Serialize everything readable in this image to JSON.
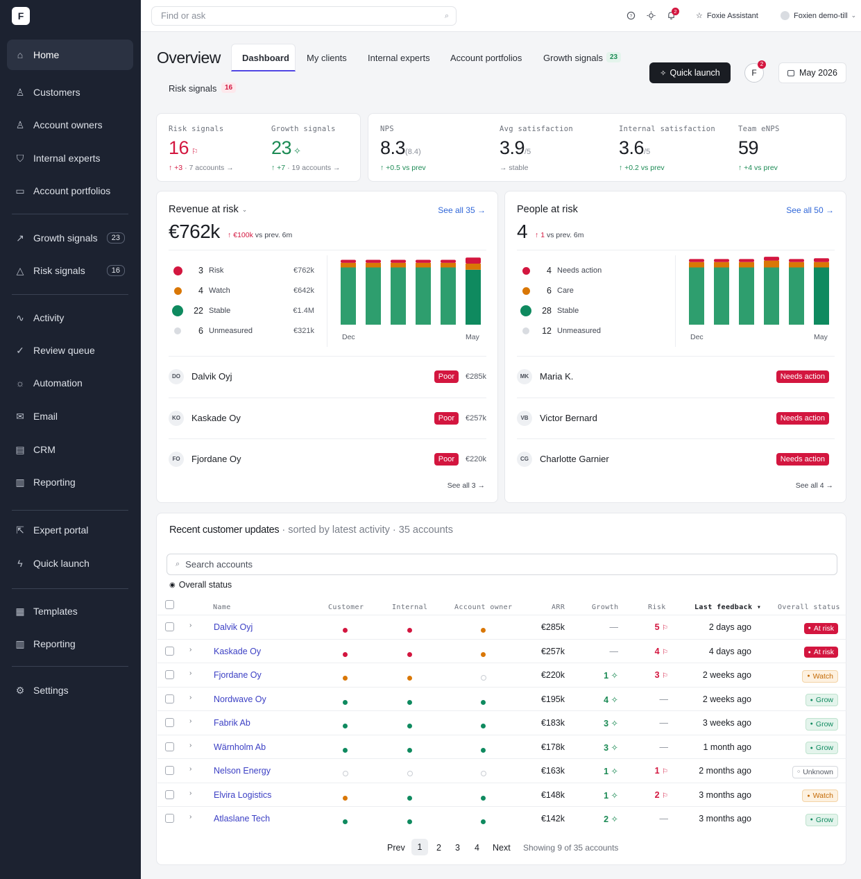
{
  "app": {
    "logo": "F"
  },
  "sidebar": {
    "items": [
      {
        "label": "Home",
        "icon": "home-icon"
      },
      {
        "label": "Customers",
        "icon": "user-icon"
      },
      {
        "label": "Account owners",
        "icon": "user-icon"
      },
      {
        "label": "Internal experts",
        "icon": "badge-icon"
      },
      {
        "label": "Account portfolios",
        "icon": "briefcase-icon"
      },
      {
        "label": "Growth signals",
        "icon": "trend-icon",
        "badge": "23"
      },
      {
        "label": "Risk signals",
        "icon": "warning-icon",
        "badge": "16"
      },
      {
        "label": "Activity",
        "icon": "activity-icon"
      },
      {
        "label": "Review queue",
        "icon": "check-circle-icon"
      },
      {
        "label": "Automation",
        "icon": "sun-icon"
      },
      {
        "label": "Email",
        "icon": "mail-icon"
      },
      {
        "label": "CRM",
        "icon": "table-icon"
      },
      {
        "label": "Reporting",
        "icon": "bar-chart-icon"
      },
      {
        "label": "Expert portal",
        "icon": "external-link-icon"
      },
      {
        "label": "Quick launch",
        "icon": "lightning-icon"
      },
      {
        "label": "Templates",
        "icon": "template-icon"
      },
      {
        "label": "Reporting",
        "icon": "bar-chart-icon"
      },
      {
        "label": "Settings",
        "icon": "gear-icon"
      }
    ]
  },
  "topbar": {
    "search_placeholder": "Find or ask",
    "notif_count": "2",
    "assistant": "Foxie Assistant",
    "account": "Foxien demo-till"
  },
  "header": {
    "title": "Overview",
    "tabs": [
      "Dashboard",
      "My clients",
      "Internal experts",
      "Account portfolios",
      "Growth signals",
      "Risk signals"
    ],
    "growth_badge": "23",
    "risk_badge": "16",
    "quick_launch": "Quick launch",
    "avatar": "F",
    "avatar_badge": "2",
    "date": "May 2026"
  },
  "kpis": [
    {
      "label": "Risk signals",
      "value": "16",
      "sub_delta": "+3",
      "sub_text": "· 7 accounts →"
    },
    {
      "label": "Growth signals",
      "value": "23",
      "sub_delta": "+7",
      "sub_text": "· 19 accounts →"
    },
    {
      "label": "NPS",
      "value": "8.3",
      "suffix": "(8.4)",
      "sub_delta": "+0.5 vs prev",
      "sub_text": ""
    },
    {
      "label": "Avg satisfaction",
      "value": "3.9",
      "suffix": "/5",
      "sub_delta": "",
      "sub_text": "→ stable"
    },
    {
      "label": "Internal satisfaction",
      "value": "3.6",
      "suffix": "/5",
      "sub_delta": "+0.2 vs prev",
      "sub_text": ""
    },
    {
      "label": "Team eNPS",
      "value": "59",
      "suffix": "",
      "sub_delta": "+4 vs prev",
      "sub_text": ""
    }
  ],
  "revenue": {
    "title": "Revenue at risk",
    "see_all": "See all 35 →",
    "value": "€762k",
    "delta": "€100k",
    "delta_text": "vs prev. 6m",
    "legend": [
      {
        "n": "3",
        "label": "Risk",
        "amt": "€762k",
        "color": "#d3163f"
      },
      {
        "n": "4",
        "label": "Watch",
        "amt": "€642k",
        "color": "#d97706"
      },
      {
        "n": "22",
        "label": "Stable",
        "amt": "€1.4M",
        "color": "#0f8a5f"
      },
      {
        "n": "6",
        "label": "Unmeasured",
        "amt": "€321k",
        "color": "#d9dce1"
      }
    ],
    "x_start": "Dec",
    "x_end": "May",
    "rows": [
      {
        "initials": "DO",
        "name": "Dalvik Oyj",
        "badge": "Poor",
        "amt": "€285k"
      },
      {
        "initials": "KO",
        "name": "Kaskade Oy",
        "badge": "Poor",
        "amt": "€257k"
      },
      {
        "initials": "FO",
        "name": "Fjordane Oy",
        "badge": "Poor",
        "amt": "€220k"
      }
    ],
    "footer": "See all 3 →"
  },
  "people": {
    "title": "People at risk",
    "see_all": "See all 50 →",
    "value": "4",
    "delta": "1",
    "delta_text": "vs prev. 6m",
    "legend": [
      {
        "n": "4",
        "label": "Needs action",
        "color": "#d3163f"
      },
      {
        "n": "6",
        "label": "Care",
        "color": "#d97706"
      },
      {
        "n": "28",
        "label": "Stable",
        "color": "#0f8a5f"
      },
      {
        "n": "12",
        "label": "Unmeasured",
        "color": "#d9dce1"
      }
    ],
    "x_start": "Dec",
    "x_end": "May",
    "rows": [
      {
        "initials": "MK",
        "name": "Maria K.",
        "badge": "Needs action"
      },
      {
        "initials": "VB",
        "name": "Victor Bernard",
        "badge": "Needs action"
      },
      {
        "initials": "CG",
        "name": "Charlotte Garnier",
        "badge": "Needs action"
      }
    ],
    "footer": "See all 4 →"
  },
  "chart_data": [
    {
      "type": "bar",
      "title": "Revenue at risk",
      "categories": [
        "Dec",
        "Jan",
        "Feb",
        "Mar",
        "Apr",
        "May"
      ],
      "series": [
        {
          "name": "Stable",
          "values": [
            75,
            75,
            75,
            75,
            75,
            72
          ]
        },
        {
          "name": "Watch",
          "values": [
            6,
            6,
            6,
            6,
            6,
            8
          ]
        },
        {
          "name": "Risk",
          "values": [
            4,
            4,
            4,
            4,
            4,
            8
          ]
        }
      ]
    },
    {
      "type": "bar",
      "title": "People at risk",
      "categories": [
        "Dec",
        "Jan",
        "Feb",
        "Mar",
        "Apr",
        "May"
      ],
      "series": [
        {
          "name": "Stable",
          "values": [
            75,
            75,
            75,
            75,
            75,
            75
          ]
        },
        {
          "name": "Care",
          "values": [
            7,
            7,
            7,
            9,
            7,
            7
          ]
        },
        {
          "name": "Needs action",
          "values": [
            4,
            4,
            4,
            5,
            4,
            5
          ]
        }
      ]
    }
  ],
  "updates": {
    "title": "Recent customer updates",
    "subtitle": "· sorted by latest activity · 35 accounts",
    "search_placeholder": "Search accounts",
    "filter": "Overall status",
    "columns": [
      "Name",
      "Customer",
      "Internal",
      "Account owner",
      "ARR",
      "Growth",
      "Risk",
      "Last feedback",
      "Overall status"
    ],
    "rows": [
      {
        "name": "Dalvik Oyj",
        "customer": "red",
        "internal": "red",
        "owner": "orange",
        "arr": "€285k",
        "growth": "—",
        "risk": "5",
        "feedback": "2 days ago",
        "status": "At risk"
      },
      {
        "name": "Kaskade Oy",
        "customer": "red",
        "internal": "red",
        "owner": "orange",
        "arr": "€257k",
        "growth": "—",
        "risk": "4",
        "feedback": "4 days ago",
        "status": "At risk"
      },
      {
        "name": "Fjordane Oy",
        "customer": "orange",
        "internal": "orange",
        "owner": "empty",
        "arr": "€220k",
        "growth": "1",
        "risk": "3",
        "feedback": "2 weeks ago",
        "status": "Watch"
      },
      {
        "name": "Nordwave Oy",
        "customer": "green",
        "internal": "green",
        "owner": "green",
        "arr": "€195k",
        "growth": "4",
        "risk": "—",
        "feedback": "2 weeks ago",
        "status": "Grow"
      },
      {
        "name": "Fabrik Ab",
        "customer": "green",
        "internal": "green",
        "owner": "green",
        "arr": "€183k",
        "growth": "3",
        "risk": "—",
        "feedback": "3 weeks ago",
        "status": "Grow"
      },
      {
        "name": "Wärnholm Ab",
        "customer": "green",
        "internal": "green",
        "owner": "green",
        "arr": "€178k",
        "growth": "3",
        "risk": "—",
        "feedback": "1 month ago",
        "status": "Grow"
      },
      {
        "name": "Nelson Energy",
        "customer": "empty",
        "internal": "empty",
        "owner": "empty",
        "arr": "€163k",
        "growth": "1",
        "risk": "1",
        "feedback": "2 months ago",
        "status": "Unknown"
      },
      {
        "name": "Elvira Logistics",
        "customer": "orange",
        "internal": "green",
        "owner": "green",
        "arr": "€148k",
        "growth": "1",
        "risk": "2",
        "feedback": "3 months ago",
        "status": "Watch"
      },
      {
        "name": "Atlaslane Tech",
        "customer": "green",
        "internal": "green",
        "owner": "green",
        "arr": "€142k",
        "growth": "2",
        "risk": "—",
        "feedback": "3 months ago",
        "status": "Grow"
      }
    ],
    "pagination": {
      "prev": "Prev",
      "pages": [
        "1",
        "2",
        "3",
        "4"
      ],
      "next": "Next",
      "summary": "Showing 9 of 35 accounts"
    }
  },
  "colors": {
    "red": "#d3163f",
    "orange": "#d97706",
    "green": "#0f8a5f",
    "link": "#3b3fc4",
    "sidebar": "#1c2230"
  }
}
